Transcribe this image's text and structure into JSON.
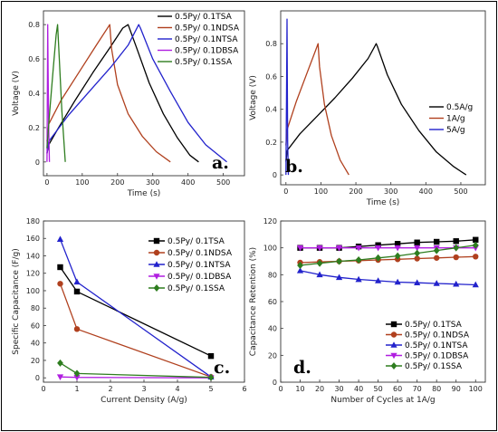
{
  "colors": {
    "0.5Py/ 0.1TSA": "#000000",
    "0.5Py/ 0.1NDSA": "#b0401e",
    "0.5Py/ 0.1NTSA": "#2222cc",
    "0.5Py/ 0.1DBSA": "#b01ee0",
    "0.5Py/ 0.1SSA": "#2e7d1f",
    "0.5A/g": "#000000",
    "1A/g": "#b0401e",
    "5A/g": "#2222cc"
  },
  "chart_data": [
    {
      "id": "a",
      "type": "line",
      "panel_label": "a.",
      "xlabel": "Time (s)",
      "ylabel": "Voltage (V)",
      "xlim": [
        -10,
        560
      ],
      "ylim": [
        -0.08,
        0.88
      ],
      "xticks": [
        0,
        100,
        200,
        300,
        400,
        500
      ],
      "yticks": [
        0.0,
        0.2,
        0.4,
        0.6,
        0.8
      ],
      "legend_position": "top-right",
      "series": [
        {
          "name": "0.5Py/ 0.1TSA",
          "marker": "none",
          "x": [
            0,
            5,
            30,
            80,
            130,
            180,
            215,
            230,
            255,
            290,
            330,
            370,
            405,
            430
          ],
          "y": [
            0.05,
            0.1,
            0.19,
            0.36,
            0.52,
            0.67,
            0.78,
            0.8,
            0.66,
            0.46,
            0.28,
            0.14,
            0.04,
            0.0
          ]
        },
        {
          "name": "0.5Py/ 0.1NDSA",
          "marker": "none",
          "x": [
            0,
            5,
            40,
            90,
            140,
            178,
            183,
            200,
            230,
            270,
            310,
            350
          ],
          "y": [
            0.12,
            0.22,
            0.36,
            0.52,
            0.68,
            0.8,
            0.66,
            0.45,
            0.28,
            0.15,
            0.06,
            0.0
          ]
        },
        {
          "name": "0.5Py/ 0.1NTSA",
          "marker": "none",
          "x": [
            0,
            5,
            60,
            120,
            180,
            230,
            260,
            265,
            300,
            350,
            400,
            450,
            510
          ],
          "y": [
            0.05,
            0.12,
            0.27,
            0.41,
            0.55,
            0.68,
            0.8,
            0.78,
            0.6,
            0.41,
            0.23,
            0.1,
            0.0
          ]
        },
        {
          "name": "0.5Py/ 0.1DBSA",
          "marker": "none",
          "x": [
            0,
            1,
            2,
            3,
            5,
            7
          ],
          "y": [
            0.0,
            0.4,
            0.8,
            0.55,
            0.2,
            0.0
          ]
        },
        {
          "name": "0.5Py/ 0.1SSA",
          "marker": "none",
          "x": [
            0,
            8,
            18,
            26,
            30,
            35,
            42,
            52
          ],
          "y": [
            0.08,
            0.3,
            0.55,
            0.74,
            0.8,
            0.6,
            0.3,
            0.0
          ]
        }
      ]
    },
    {
      "id": "b",
      "type": "line",
      "panel_label": "b.",
      "xlabel": "Time (s)",
      "ylabel": "Voltage (V)",
      "xlim": [
        -15,
        570
      ],
      "ylim": [
        -0.06,
        1.0
      ],
      "xticks": [
        0,
        100,
        200,
        300,
        400,
        500
      ],
      "yticks": [
        0.0,
        0.2,
        0.4,
        0.6,
        0.8
      ],
      "legend_position": "right",
      "series": [
        {
          "name": "0.5A/g",
          "marker": "none",
          "x": [
            0,
            4,
            40,
            90,
            140,
            190,
            235,
            258,
            262,
            290,
            330,
            380,
            430,
            480,
            515
          ],
          "y": [
            0.08,
            0.15,
            0.25,
            0.36,
            0.47,
            0.59,
            0.71,
            0.8,
            0.78,
            0.61,
            0.43,
            0.27,
            0.14,
            0.05,
            0.0
          ]
        },
        {
          "name": "1A/g",
          "marker": "none",
          "x": [
            0,
            4,
            30,
            60,
            85,
            92,
            96,
            110,
            130,
            155,
            180
          ],
          "y": [
            0.18,
            0.28,
            0.45,
            0.62,
            0.76,
            0.8,
            0.66,
            0.43,
            0.24,
            0.09,
            0.0
          ]
        },
        {
          "name": "5A/g",
          "marker": "none",
          "x": [
            0,
            1.5,
            3,
            4,
            5,
            7
          ],
          "y": [
            0.0,
            0.45,
            0.95,
            0.6,
            0.2,
            0.0
          ]
        }
      ]
    },
    {
      "id": "c",
      "type": "line",
      "panel_label": "c.",
      "xlabel": "Current Density (A/g)",
      "ylabel": "Specific Capacitance (F/g)",
      "xlim": [
        0,
        6
      ],
      "ylim": [
        -5,
        180
      ],
      "xticks": [
        0,
        1,
        2,
        3,
        4,
        5,
        6
      ],
      "yticks": [
        0,
        20,
        40,
        60,
        80,
        100,
        120,
        140,
        160,
        180
      ],
      "legend_position": "top-right",
      "series": [
        {
          "name": "0.5Py/ 0.1TSA",
          "marker": "square",
          "x": [
            0.5,
            1,
            5
          ],
          "y": [
            127,
            99,
            25
          ]
        },
        {
          "name": "0.5Py/ 0.1NDSA",
          "marker": "circle",
          "x": [
            0.5,
            1,
            5
          ],
          "y": [
            108,
            56,
            1
          ]
        },
        {
          "name": "0.5Py/ 0.1NTSA",
          "marker": "triangle-up",
          "x": [
            0.5,
            1,
            5
          ],
          "y": [
            159,
            110,
            1
          ]
        },
        {
          "name": "0.5Py/ 0.1DBSA",
          "marker": "triangle-down",
          "x": [
            0.5,
            1,
            5
          ],
          "y": [
            1,
            0.5,
            0
          ]
        },
        {
          "name": "0.5Py/ 0.1SSA",
          "marker": "diamond",
          "x": [
            0.5,
            1,
            5
          ],
          "y": [
            17,
            5,
            0.5
          ]
        }
      ]
    },
    {
      "id": "d",
      "type": "line",
      "panel_label": "d.",
      "xlabel": "Number of Cycles at 1A/g",
      "ylabel": "Capacitance Retention (%)",
      "xlim": [
        0,
        105
      ],
      "ylim": [
        0,
        120
      ],
      "xticks": [
        0,
        10,
        20,
        30,
        40,
        50,
        60,
        70,
        80,
        90,
        100
      ],
      "yticks": [
        0,
        20,
        40,
        60,
        80,
        100,
        120
      ],
      "legend_position": "bottom-right",
      "series": [
        {
          "name": "0.5Py/ 0.1TSA",
          "marker": "square",
          "x": [
            10,
            20,
            30,
            40,
            50,
            60,
            70,
            80,
            90,
            100
          ],
          "y": [
            100,
            100,
            100,
            101,
            102,
            103,
            104,
            104.5,
            105,
            106
          ]
        },
        {
          "name": "0.5Py/ 0.1NDSA",
          "marker": "circle",
          "x": [
            10,
            20,
            30,
            40,
            50,
            60,
            70,
            80,
            90,
            100
          ],
          "y": [
            89,
            89.5,
            90,
            90.5,
            91,
            91.5,
            92,
            92.5,
            93,
            93.5
          ]
        },
        {
          "name": "0.5Py/ 0.1NTSA",
          "marker": "triangle-up",
          "x": [
            10,
            20,
            30,
            40,
            50,
            60,
            70,
            80,
            90,
            100
          ],
          "y": [
            83,
            80,
            78,
            76.5,
            75.5,
            74.5,
            74,
            73.5,
            73,
            72.5
          ]
        },
        {
          "name": "0.5Py/ 0.1DBSA",
          "marker": "triangle-down",
          "x": [
            10,
            20,
            30,
            40,
            50,
            60,
            70,
            80,
            90,
            100
          ],
          "y": [
            100,
            100,
            100,
            100,
            100,
            100,
            100,
            100,
            100,
            100
          ]
        },
        {
          "name": "0.5Py/ 0.1SSA",
          "marker": "diamond",
          "x": [
            10,
            20,
            30,
            40,
            50,
            60,
            70,
            80,
            90,
            100
          ],
          "y": [
            87,
            88.5,
            90,
            91,
            92.5,
            94,
            96,
            98,
            100,
            102
          ]
        }
      ]
    }
  ]
}
